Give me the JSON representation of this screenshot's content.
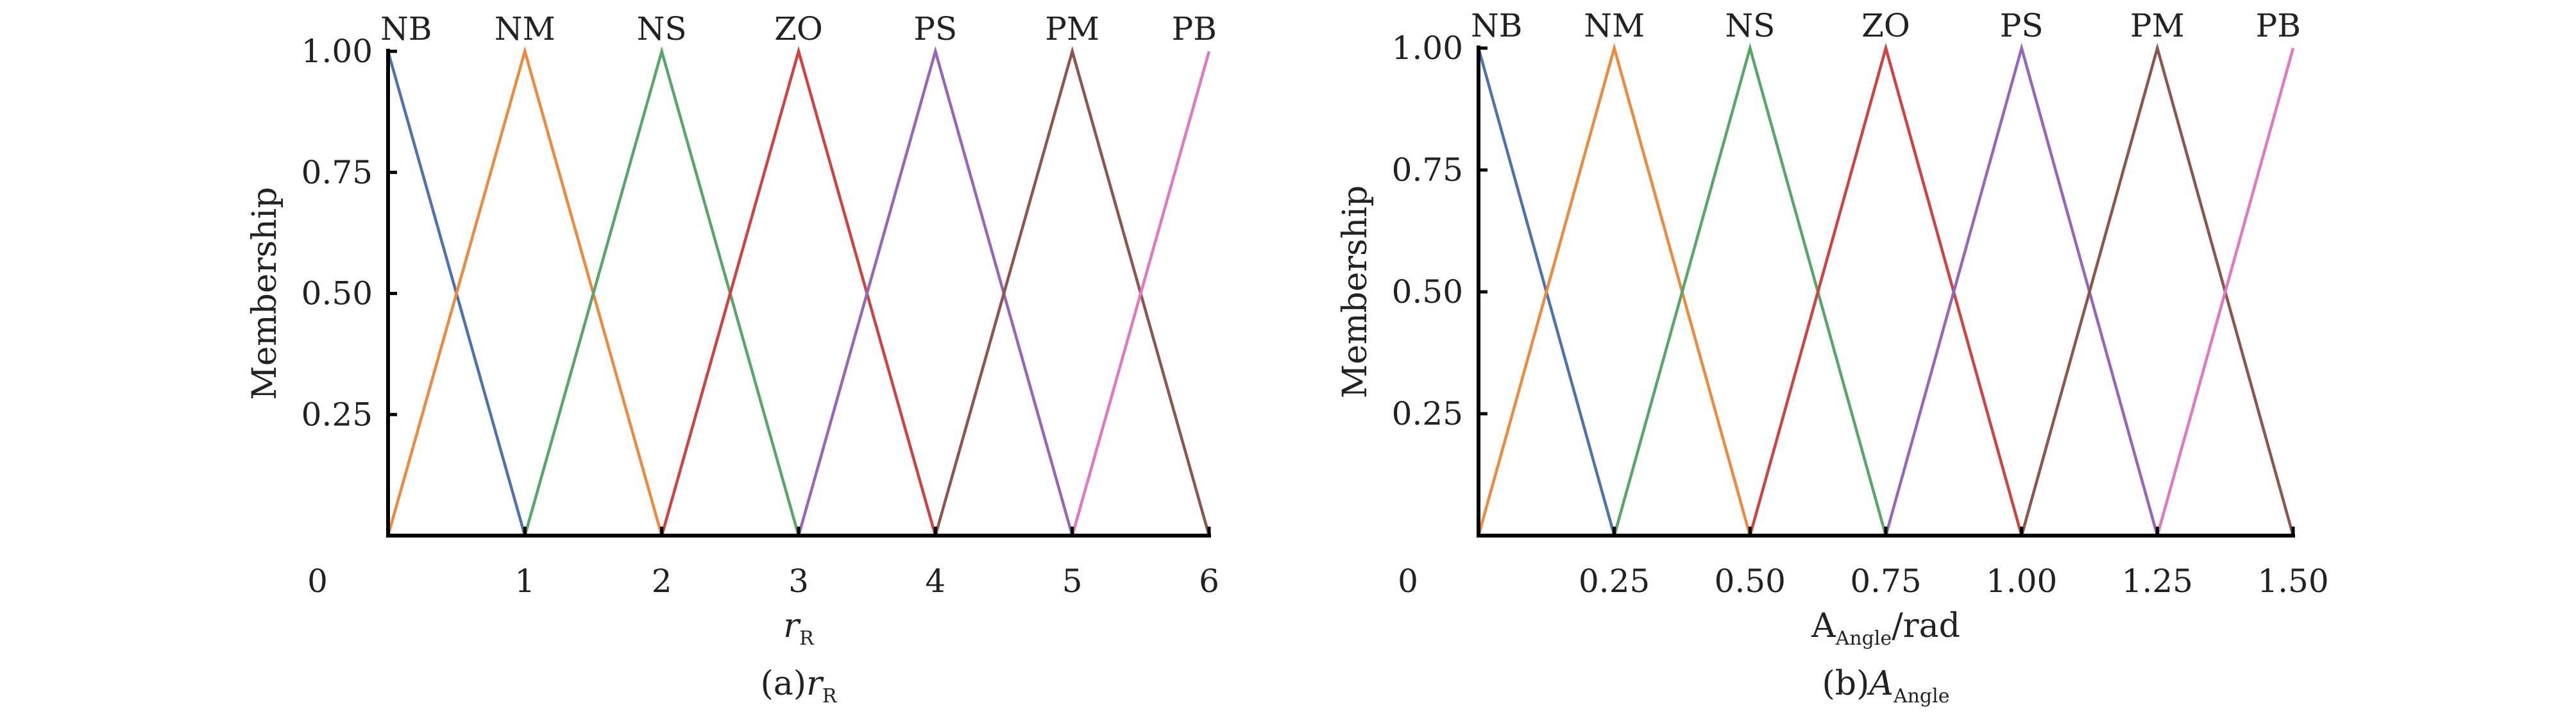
{
  "chart_data": [
    {
      "type": "line",
      "caption": {
        "prefix": "(a)",
        "main": "r",
        "sub": "R"
      },
      "xlabel": {
        "main": "r",
        "sub": "R",
        "italic": true
      },
      "ylabel": "Membership",
      "xlim": [
        0,
        6
      ],
      "ylim": [
        0,
        1
      ],
      "x_ticks": [
        0,
        1,
        2,
        3,
        4,
        5,
        6
      ],
      "x_tick_labels": [
        "0",
        "1",
        "2",
        "3",
        "4",
        "5",
        "6"
      ],
      "y_ticks": [
        0.25,
        0.5,
        0.75,
        1.0
      ],
      "y_tick_labels": [
        "0.25",
        "0.50",
        "0.75",
        "1.00"
      ],
      "series": [
        {
          "name": "NB",
          "color": "#4c72b0",
          "x": [
            0,
            1
          ],
          "y": [
            1,
            0
          ]
        },
        {
          "name": "NM",
          "color": "#ef8a3d",
          "x": [
            0,
            1,
            2
          ],
          "y": [
            0,
            1,
            0
          ]
        },
        {
          "name": "NS",
          "color": "#55a868",
          "x": [
            1,
            2,
            3
          ],
          "y": [
            0,
            1,
            0
          ]
        },
        {
          "name": "ZO",
          "color": "#d1423f",
          "x": [
            2,
            3,
            4
          ],
          "y": [
            0,
            1,
            0
          ]
        },
        {
          "name": "PS",
          "color": "#9467bd",
          "x": [
            3,
            4,
            5
          ],
          "y": [
            0,
            1,
            0
          ]
        },
        {
          "name": "PM",
          "color": "#8c564b",
          "x": [
            4,
            5,
            6
          ],
          "y": [
            0,
            1,
            0
          ]
        },
        {
          "name": "PB",
          "color": "#e377c2",
          "x": [
            5,
            6
          ],
          "y": [
            0,
            1
          ]
        }
      ]
    },
    {
      "type": "line",
      "caption": {
        "prefix": "(b)",
        "main": "A",
        "sub": "Angle"
      },
      "xlabel": {
        "main": "A",
        "sub": "Angle",
        "suffix": "/rad",
        "italic": false
      },
      "ylabel": "Membership",
      "xlim": [
        0,
        1.5
      ],
      "ylim": [
        0,
        1
      ],
      "x_ticks": [
        0,
        0.25,
        0.5,
        0.75,
        1.0,
        1.25,
        1.5
      ],
      "x_tick_labels": [
        "0",
        "0.25",
        "0.50",
        "0.75",
        "1.00",
        "1.25",
        "1.50"
      ],
      "y_ticks": [
        0.25,
        0.5,
        0.75,
        1.0
      ],
      "y_tick_labels": [
        "0.25",
        "0.50",
        "0.75",
        "1.00"
      ],
      "series": [
        {
          "name": "NB",
          "color": "#4c72b0",
          "x": [
            0,
            0.25
          ],
          "y": [
            1,
            0
          ]
        },
        {
          "name": "NM",
          "color": "#ef8a3d",
          "x": [
            0,
            0.25,
            0.5
          ],
          "y": [
            0,
            1,
            0
          ]
        },
        {
          "name": "NS",
          "color": "#55a868",
          "x": [
            0.25,
            0.5,
            0.75
          ],
          "y": [
            0,
            1,
            0
          ]
        },
        {
          "name": "ZO",
          "color": "#d1423f",
          "x": [
            0.5,
            0.75,
            1.0
          ],
          "y": [
            0,
            1,
            0
          ]
        },
        {
          "name": "PS",
          "color": "#9467bd",
          "x": [
            0.75,
            1.0,
            1.25
          ],
          "y": [
            0,
            1,
            0
          ]
        },
        {
          "name": "PM",
          "color": "#8c564b",
          "x": [
            1.0,
            1.25,
            1.5
          ],
          "y": [
            0,
            1,
            0
          ]
        },
        {
          "name": "PB",
          "color": "#e377c2",
          "x": [
            1.25,
            1.5
          ],
          "y": [
            0,
            1
          ]
        }
      ]
    }
  ]
}
